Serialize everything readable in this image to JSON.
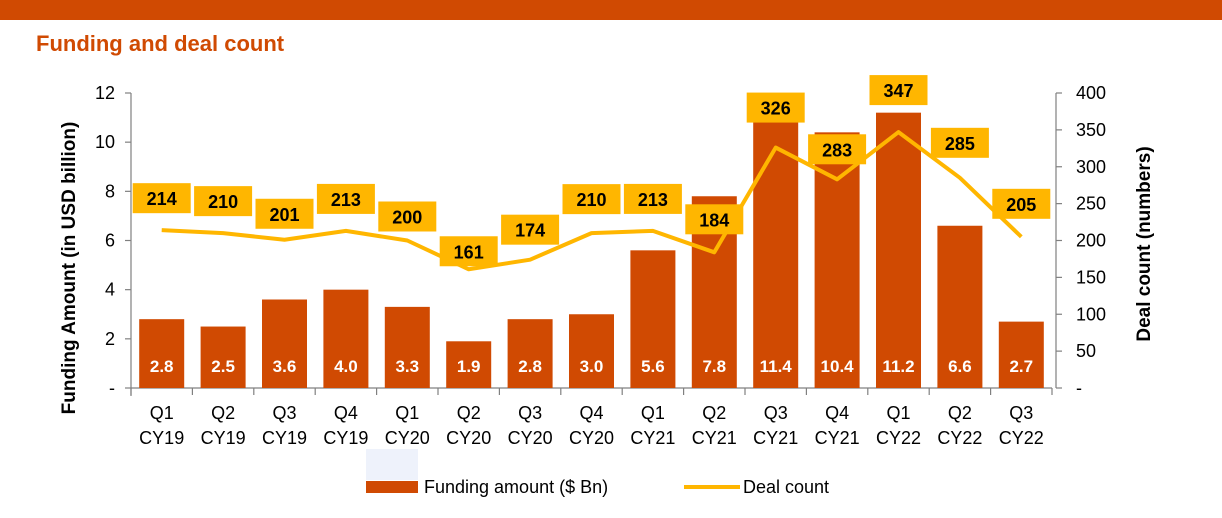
{
  "title": "Funding and deal count",
  "colors": {
    "top_bar": "#d04a02",
    "title": "#d04a02",
    "bar": "#d04a02",
    "line": "#ffb600",
    "label_box": "#ffb600"
  },
  "chart_data": {
    "type": "bar",
    "categories": [
      [
        "Q1",
        "CY19"
      ],
      [
        "Q2",
        "CY19"
      ],
      [
        "Q3",
        "CY19"
      ],
      [
        "Q4",
        "CY19"
      ],
      [
        "Q1",
        "CY20"
      ],
      [
        "Q2",
        "CY20"
      ],
      [
        "Q3",
        "CY20"
      ],
      [
        "Q4",
        "CY20"
      ],
      [
        "Q1",
        "CY21"
      ],
      [
        "Q2",
        "CY21"
      ],
      [
        "Q3",
        "CY21"
      ],
      [
        "Q4",
        "CY21"
      ],
      [
        "Q1",
        "CY22"
      ],
      [
        "Q2",
        "CY22"
      ],
      [
        "Q3",
        "CY22"
      ]
    ],
    "series": [
      {
        "name": "Funding amount ($ Bn)",
        "type": "bar",
        "axis": "left",
        "values": [
          2.8,
          2.5,
          3.6,
          4.0,
          3.3,
          1.9,
          2.8,
          3.0,
          5.6,
          7.8,
          11.4,
          10.4,
          11.2,
          6.6,
          2.7
        ],
        "labels": [
          "2.8",
          "2.5",
          "3.6",
          "4.0",
          "3.3",
          "1.9",
          "2.8",
          "3.0",
          "5.6",
          "7.8",
          "11.4",
          "10.4",
          "11.2",
          "6.6",
          "2.7"
        ]
      },
      {
        "name": "Deal count",
        "type": "line",
        "axis": "right",
        "values": [
          214,
          210,
          201,
          213,
          200,
          161,
          174,
          210,
          213,
          184,
          326,
          283,
          347,
          285,
          205
        ]
      }
    ],
    "ylabel": "Funding Amount (in USD billion)",
    "y2label": "Deal count (numbers)",
    "ylim": [
      0,
      12
    ],
    "y2lim": [
      0,
      400
    ],
    "yticks": [
      "-",
      "2",
      "4",
      "6",
      "8",
      "10",
      "12"
    ],
    "y2ticks": [
      "-",
      "50",
      "100",
      "150",
      "200",
      "250",
      "300",
      "350",
      "400"
    ],
    "legend": "bottom"
  }
}
